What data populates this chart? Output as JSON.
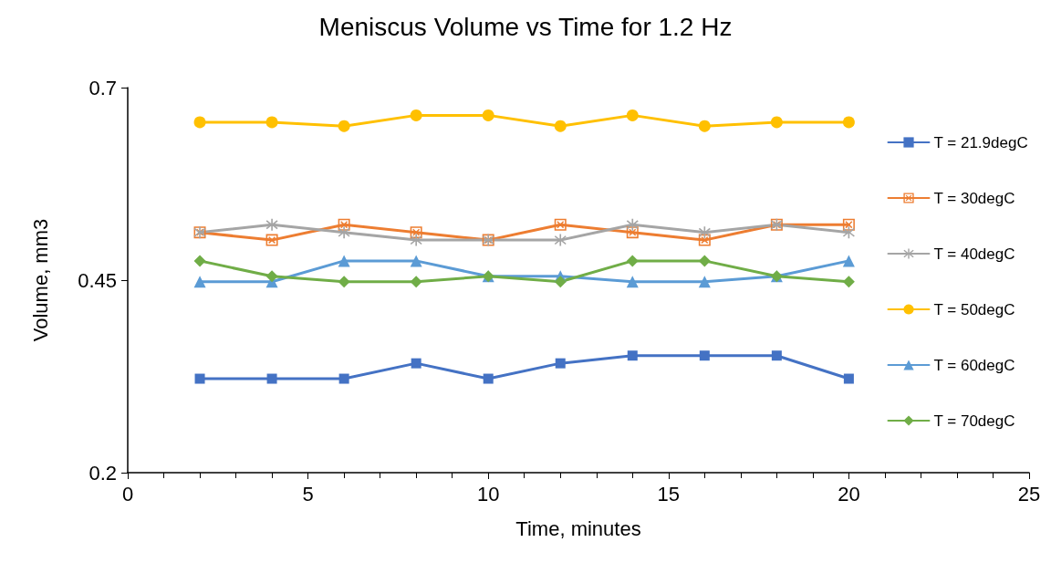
{
  "chart_data": {
    "type": "line",
    "title": "Meniscus Volume vs Time for 1.2 Hz",
    "xlabel": "Time, minutes",
    "ylabel": "Volume, mm3",
    "x": [
      2,
      4,
      6,
      8,
      10,
      12,
      14,
      16,
      18,
      20
    ],
    "xlim": [
      0,
      25
    ],
    "xticks": [
      0,
      5,
      10,
      15,
      20,
      25
    ],
    "ylim": [
      0.2,
      0.7
    ],
    "yticks": [
      0.2,
      0.45,
      0.7
    ],
    "grid": false,
    "legend": "right",
    "line_style": "solid",
    "series": [
      {
        "name": "T = 21.9degC",
        "color": "#4472c4",
        "marker": "square",
        "values": [
          0.322,
          0.322,
          0.322,
          0.342,
          0.322,
          0.342,
          0.352,
          0.352,
          0.352,
          0.322
        ]
      },
      {
        "name": "T = 30degC",
        "color": "#ed7d31",
        "marker": "cross",
        "values": [
          0.512,
          0.502,
          0.522,
          0.512,
          0.502,
          0.522,
          0.512,
          0.502,
          0.522,
          0.522
        ]
      },
      {
        "name": "T = 40degC",
        "color": "#a5a5a5",
        "marker": "star",
        "values": [
          0.512,
          0.522,
          0.512,
          0.502,
          0.502,
          0.502,
          0.522,
          0.512,
          0.522,
          0.512
        ]
      },
      {
        "name": "T = 50degC",
        "color": "#ffc000",
        "marker": "circle",
        "values": [
          0.655,
          0.655,
          0.65,
          0.664,
          0.664,
          0.65,
          0.664,
          0.65,
          0.655,
          0.655
        ]
      },
      {
        "name": "T = 60degC",
        "color": "#5b9bd5",
        "marker": "triangle",
        "values": [
          0.448,
          0.448,
          0.475,
          0.475,
          0.455,
          0.455,
          0.448,
          0.448,
          0.455,
          0.475
        ]
      },
      {
        "name": "T = 70degC",
        "color": "#70ad47",
        "marker": "diamond",
        "values": [
          0.475,
          0.455,
          0.448,
          0.448,
          0.455,
          0.448,
          0.475,
          0.475,
          0.455,
          0.448
        ]
      }
    ]
  }
}
